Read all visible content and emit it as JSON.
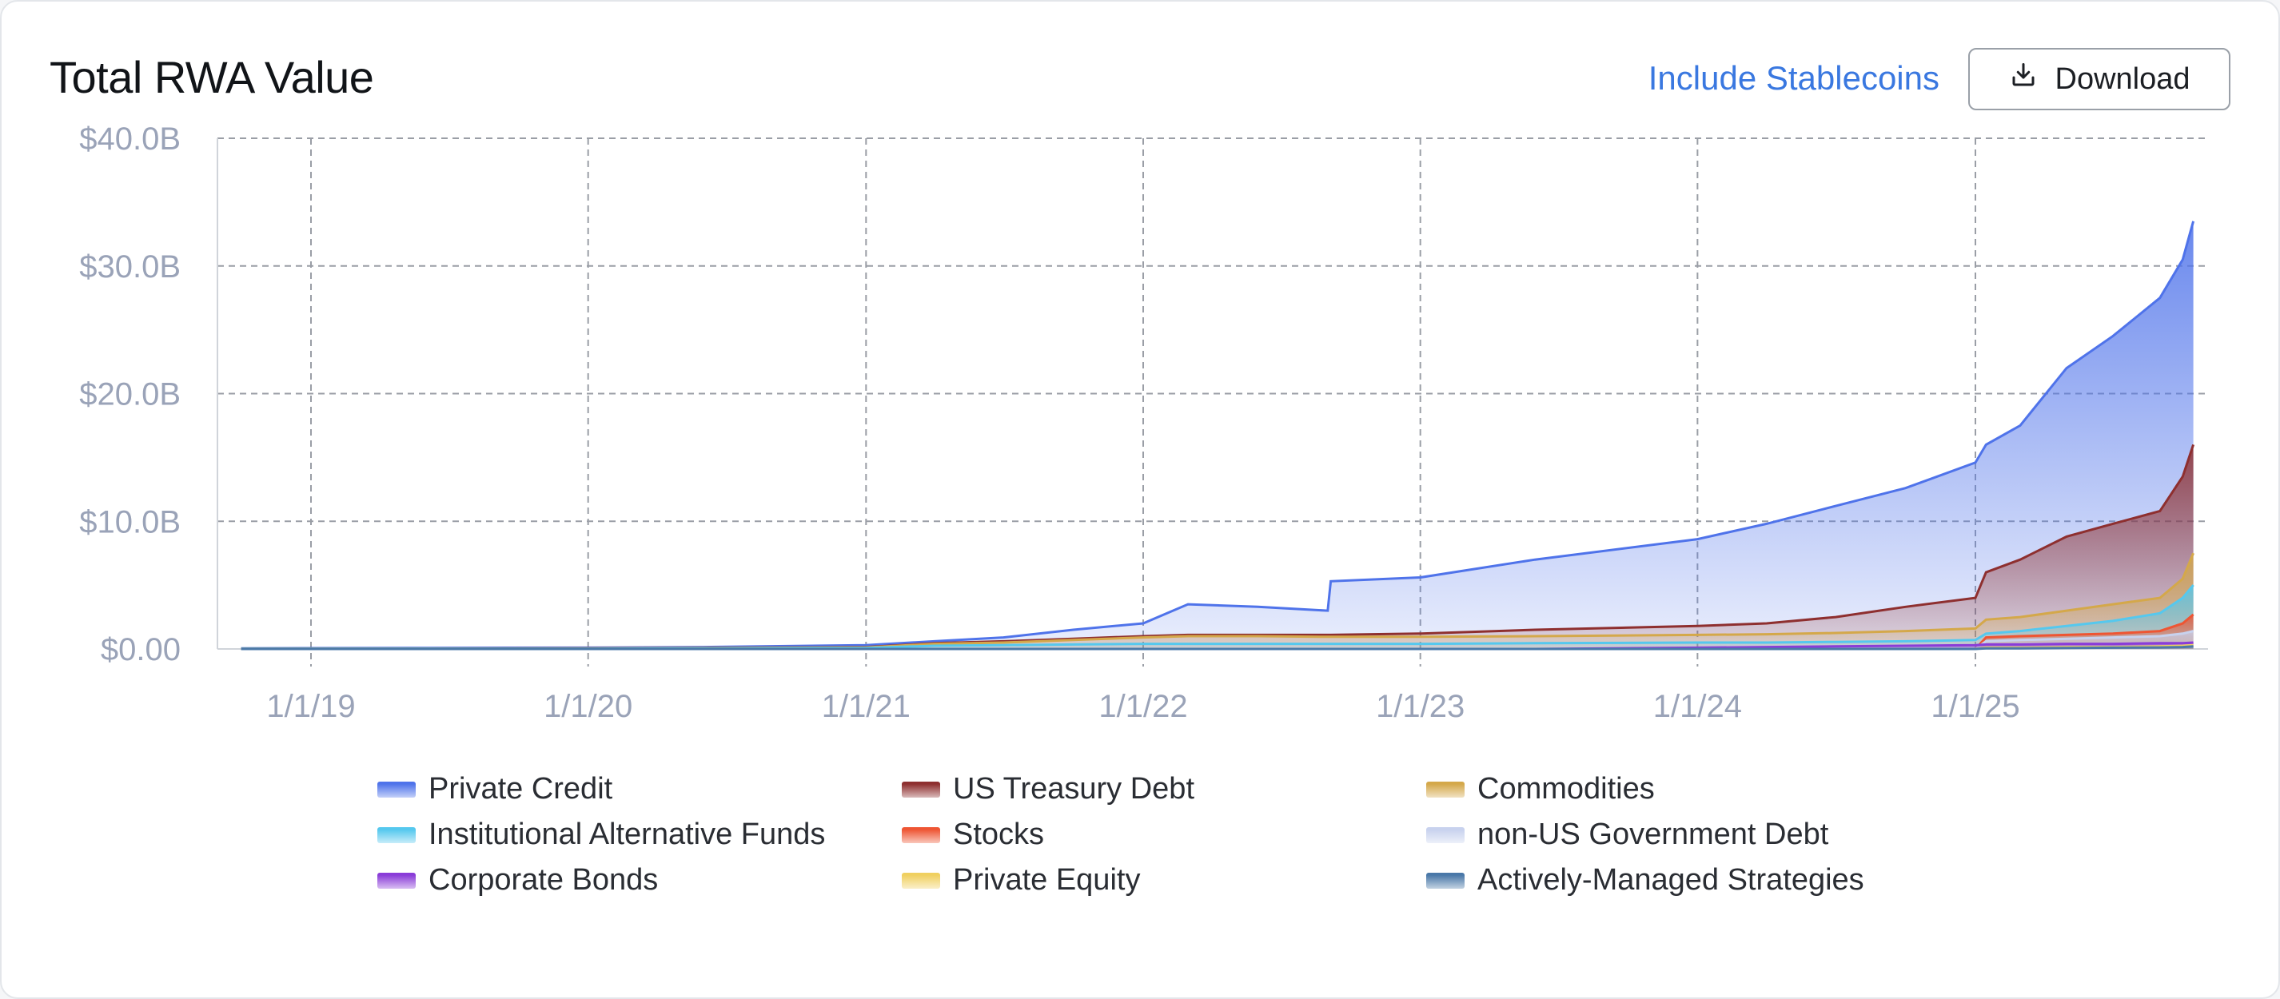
{
  "header": {
    "title": "Total RWA Value",
    "toggle_label": "Include Stablecoins",
    "download_label": "Download"
  },
  "colors": {
    "Private Credit": "#4f73ea",
    "US Treasury Debt": "#8e2f2f",
    "Commodities": "#d4a84a",
    "Institutional Alternative Funds": "#55c8ee",
    "Stocks": "#ee5533",
    "non-US Government Debt": "#c8d2ee",
    "Corporate Bonds": "#8a3cd8",
    "Private Equity": "#f0d060",
    "Actively-Managed Strategies": "#4a78a8"
  },
  "chart_data": {
    "type": "area",
    "title": "Total RWA Value",
    "ylim": [
      0,
      40
    ],
    "y_unit": "$B",
    "yticks": [
      "$0.00",
      "$10.0B",
      "$20.0B",
      "$30.0B",
      "$40.0B"
    ],
    "xticks": [
      "1/1/19",
      "1/1/20",
      "1/1/21",
      "1/1/22",
      "1/1/23",
      "1/1/24",
      "1/1/25"
    ],
    "grid": true,
    "legend_position": "bottom",
    "x": [
      "2018-10-01",
      "2019-06-01",
      "2020-01-01",
      "2020-06-01",
      "2021-01-01",
      "2021-04-01",
      "2021-07-01",
      "2021-10-01",
      "2022-01-01",
      "2022-03-01",
      "2022-06-01",
      "2022-09-01",
      "2022-09-05",
      "2023-01-01",
      "2023-06-01",
      "2024-01-01",
      "2024-04-01",
      "2024-07-01",
      "2024-10-01",
      "2025-01-01",
      "2025-01-15",
      "2025-03-01",
      "2025-05-01",
      "2025-07-01",
      "2025-09-01",
      "2025-10-01",
      "2025-10-15"
    ],
    "series": [
      {
        "name": "Private Credit",
        "total": [
          0.05,
          0.08,
          0.1,
          0.15,
          0.3,
          0.6,
          0.9,
          1.5,
          2.0,
          3.5,
          3.3,
          3.0,
          5.3,
          5.6,
          7.0,
          8.6,
          9.8,
          11.2,
          12.6,
          14.6,
          16.0,
          17.5,
          22.0,
          24.5,
          27.5,
          30.5,
          33.5
        ]
      },
      {
        "name": "US Treasury Debt",
        "total": [
          0.02,
          0.03,
          0.05,
          0.08,
          0.15,
          0.45,
          0.6,
          0.8,
          1.0,
          1.1,
          1.1,
          1.1,
          1.1,
          1.2,
          1.5,
          1.8,
          2.0,
          2.5,
          3.3,
          4.0,
          6.0,
          7.0,
          8.8,
          9.8,
          10.8,
          13.5,
          16.0
        ]
      },
      {
        "name": "Commodities",
        "total": [
          0.02,
          0.03,
          0.04,
          0.07,
          0.12,
          0.4,
          0.5,
          0.7,
          0.9,
          1.0,
          1.0,
          0.95,
          0.95,
          0.95,
          1.0,
          1.1,
          1.15,
          1.25,
          1.4,
          1.6,
          2.3,
          2.5,
          3.0,
          3.5,
          4.0,
          5.5,
          7.5
        ]
      },
      {
        "name": "Institutional Alternative Funds",
        "total": [
          0.01,
          0.02,
          0.02,
          0.04,
          0.08,
          0.25,
          0.3,
          0.35,
          0.4,
          0.4,
          0.4,
          0.4,
          0.4,
          0.4,
          0.45,
          0.5,
          0.5,
          0.55,
          0.6,
          0.7,
          1.2,
          1.4,
          1.8,
          2.2,
          2.8,
          4.0,
          5.0
        ]
      },
      {
        "name": "Stocks",
        "total": [
          0,
          0,
          0,
          0,
          0,
          0,
          0,
          0,
          0,
          0,
          0,
          0,
          0,
          0,
          0,
          0,
          0,
          0,
          0,
          0,
          0.9,
          1.0,
          1.1,
          1.2,
          1.4,
          2.0,
          2.7
        ]
      },
      {
        "name": "non-US Government Debt",
        "total": [
          0,
          0,
          0,
          0,
          0,
          0,
          0,
          0,
          0,
          0,
          0,
          0,
          0,
          0,
          0,
          0,
          0,
          0,
          0,
          0,
          0.6,
          0.7,
          0.8,
          0.9,
          1.0,
          1.2,
          1.4
        ]
      },
      {
        "name": "Corporate Bonds",
        "total": [
          0,
          0,
          0,
          0,
          0,
          0,
          0,
          0,
          0,
          0,
          0,
          0,
          0,
          0,
          0,
          0.1,
          0.15,
          0.2,
          0.25,
          0.3,
          0.35,
          0.35,
          0.4,
          0.4,
          0.45,
          0.45,
          0.5
        ]
      },
      {
        "name": "Private Equity",
        "total": [
          0,
          0,
          0,
          0,
          0,
          0,
          0,
          0,
          0,
          0,
          0,
          0,
          0,
          0,
          0,
          0,
          0,
          0,
          0,
          0,
          0.1,
          0.1,
          0.15,
          0.15,
          0.2,
          0.25,
          0.3
        ]
      },
      {
        "name": "Actively-Managed Strategies",
        "total": [
          0,
          0,
          0,
          0,
          0,
          0,
          0,
          0,
          0,
          0,
          0,
          0,
          0,
          0,
          0,
          0,
          0,
          0,
          0,
          0,
          0.05,
          0.05,
          0.08,
          0.1,
          0.12,
          0.15,
          0.2
        ]
      }
    ]
  }
}
